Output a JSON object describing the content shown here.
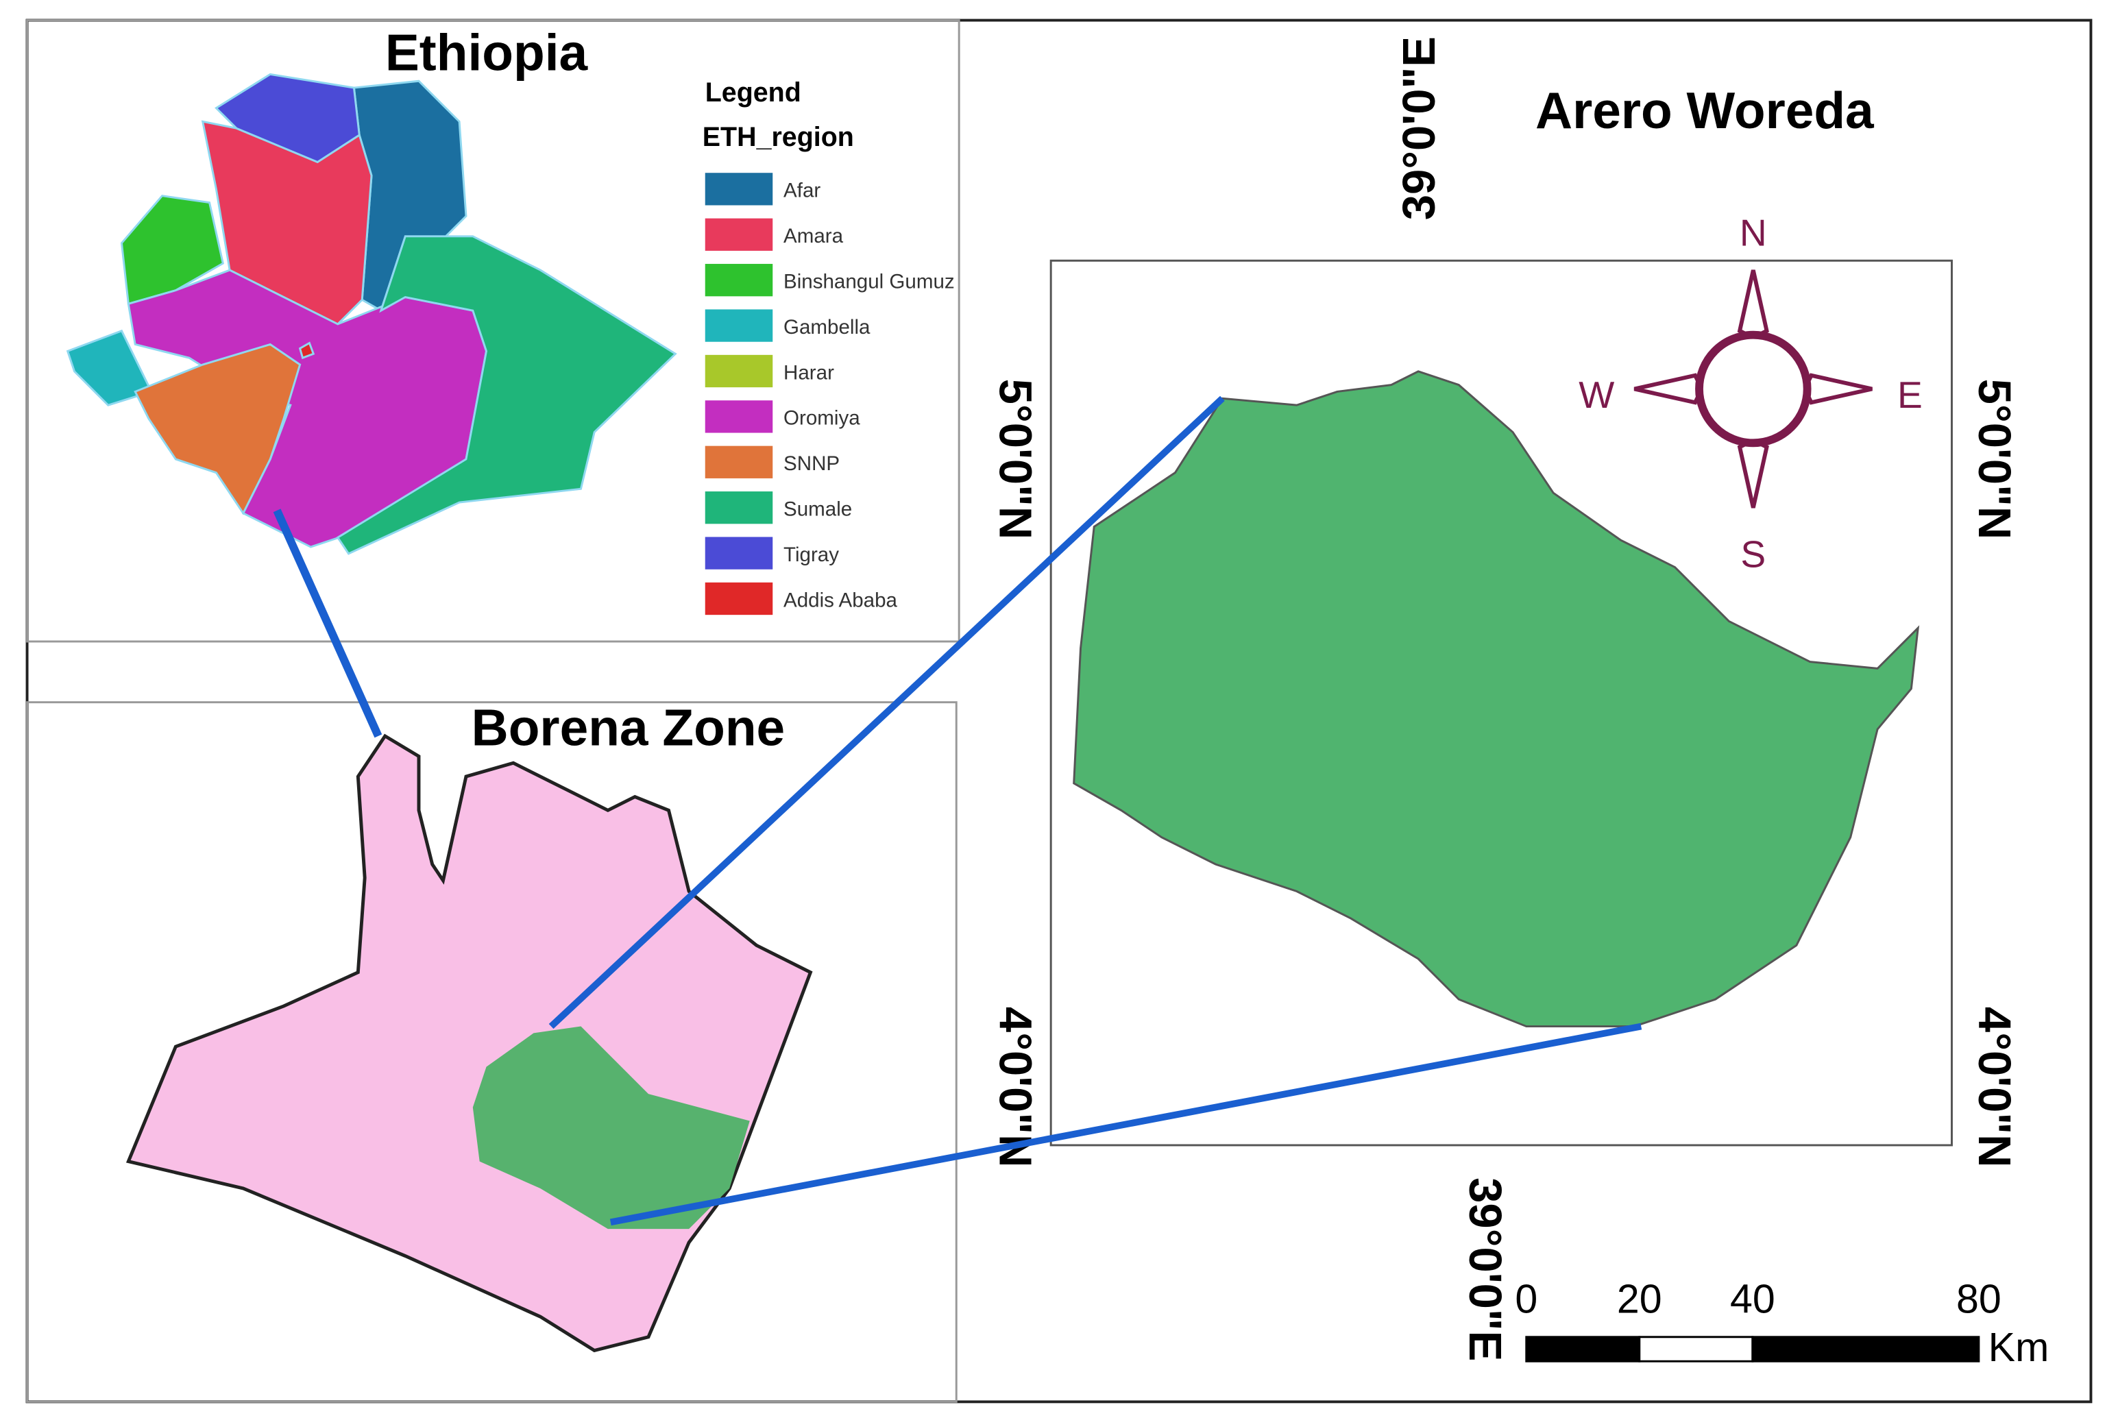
{
  "ethiopia": {
    "title": "Ethiopia",
    "legend": {
      "title": "Legend",
      "field": "ETH_region",
      "items": [
        {
          "label": "Afar",
          "color": "#1b6fa0"
        },
        {
          "label": "Amara",
          "color": "#e83a5c"
        },
        {
          "label": "Binshangul Gumuz",
          "color": "#2ec22e"
        },
        {
          "label": "Gambella",
          "color": "#20b5bb"
        },
        {
          "label": "Harar",
          "color": "#a8c82a"
        },
        {
          "label": "Oromiya",
          "color": "#c32ec0"
        },
        {
          "label": "SNNP",
          "color": "#e0743a"
        },
        {
          "label": "Sumale",
          "color": "#1fb57a"
        },
        {
          "label": "Tigray",
          "color": "#4b4bd6"
        },
        {
          "label": "Addis Ababa",
          "color": "#e02828"
        }
      ]
    }
  },
  "borena": {
    "title": "Borena Zone"
  },
  "arero": {
    "title": "Arero Woreda",
    "lon_top": "39°0'0\"E",
    "lon_bottom": "39°0'0\"E",
    "lat_upper_left": "5°0'0\"N",
    "lat_upper_right": "5°0'0\"N",
    "lat_lower_left": "4°0'0\"N",
    "lat_lower_right": "4°0'0\"N"
  },
  "compass": {
    "n": "N",
    "e": "E",
    "s": "S",
    "w": "W"
  },
  "scale_bar": {
    "ticks": [
      0,
      20,
      40,
      80
    ],
    "unit": "Km"
  }
}
